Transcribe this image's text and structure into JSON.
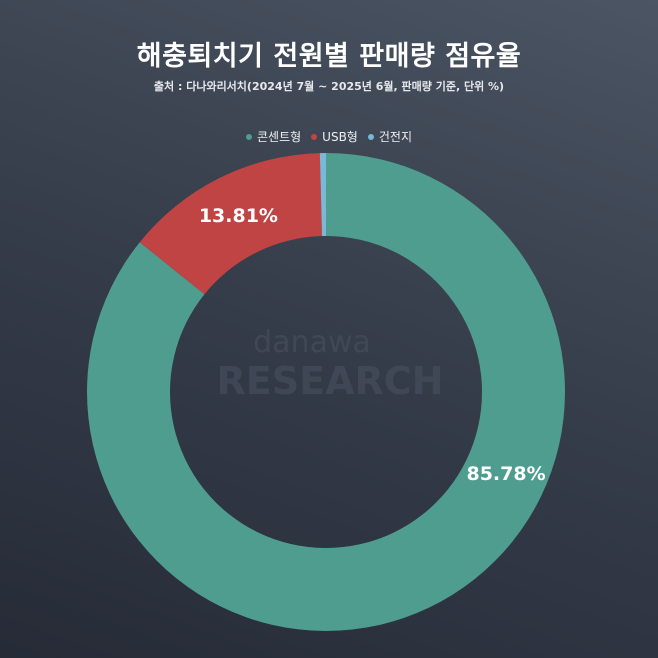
{
  "chart_data": {
    "type": "pie",
    "title": "해충퇴치기 전원별 판매량 점유율",
    "subtitle": "출처 : 다나와리서치(2024년 7월 ~ 2025년 6월, 판매량 기준, 단위 %)",
    "donut": true,
    "legend_position": "top",
    "categories": [
      "콘센트형",
      "USB형",
      "건전지"
    ],
    "values": [
      85.78,
      13.81,
      0.41
    ],
    "data_labels": [
      "85.78%",
      "13.81%",
      ""
    ],
    "colors": [
      "#4f9d8f",
      "#c04444",
      "#7ab8d8"
    ],
    "watermark": "danawa RESEARCH"
  }
}
